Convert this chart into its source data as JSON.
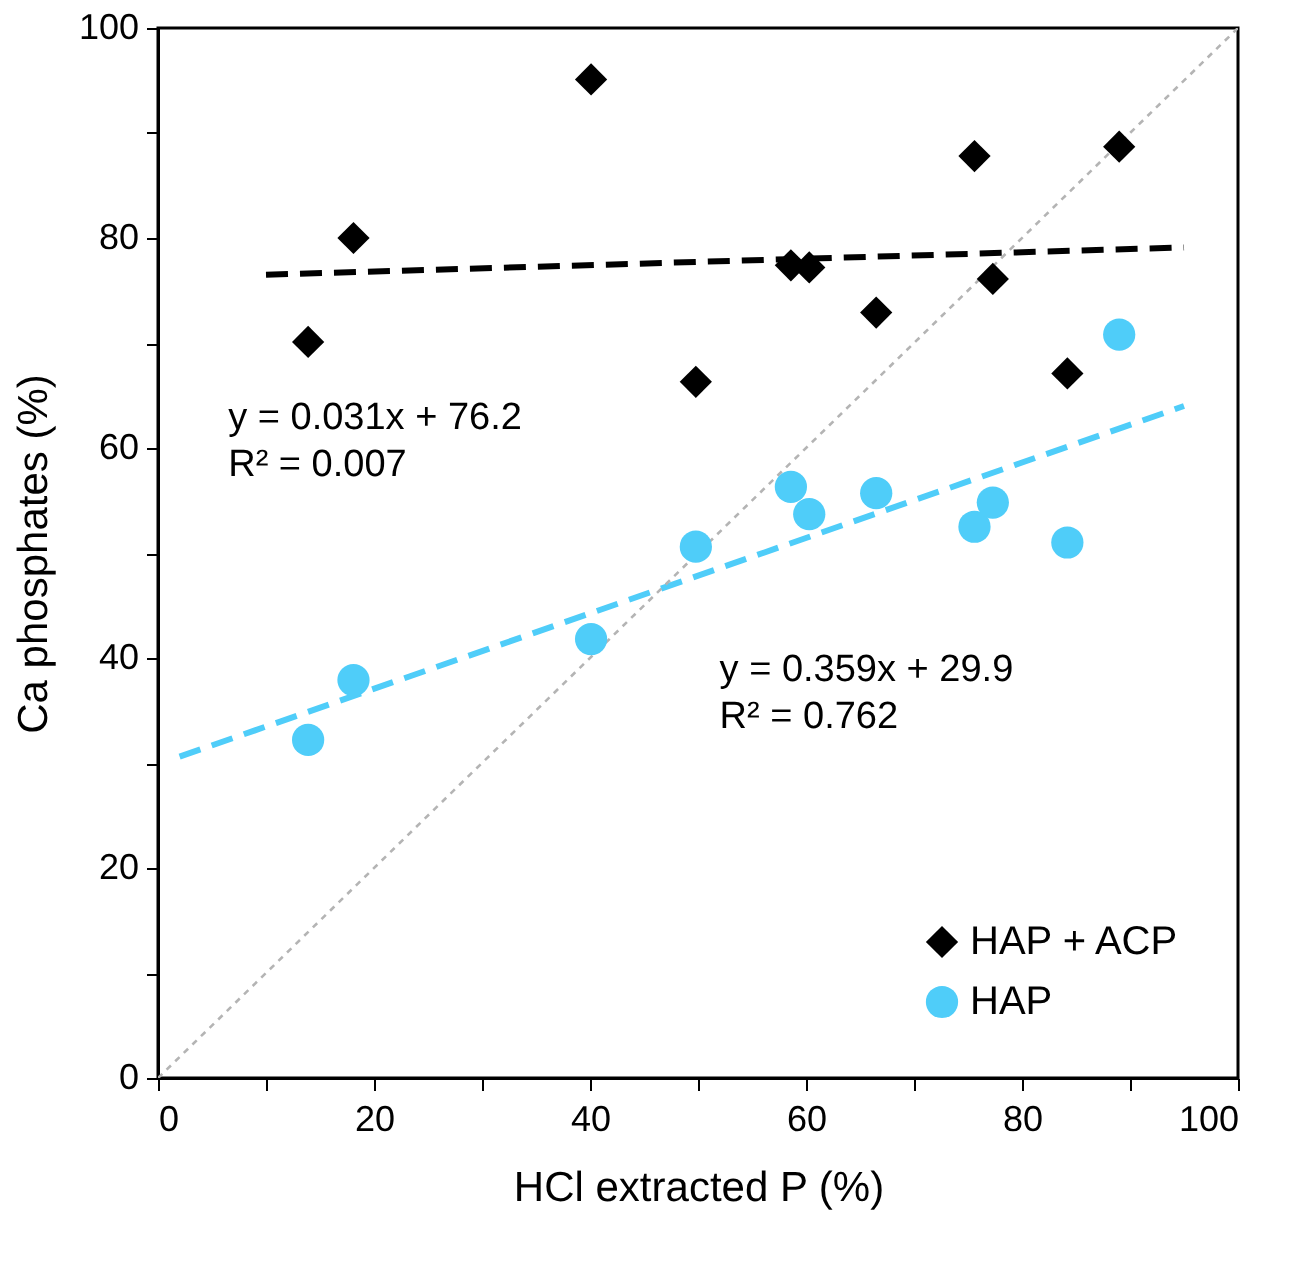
{
  "chart_data": {
    "type": "scatter",
    "xlabel": "HCl extracted P (%)",
    "ylabel": "Ca phosphates (%)",
    "x": [
      13.9,
      18.1,
      40.1,
      49.8,
      58.6,
      60.3,
      66.5,
      75.6,
      77.3,
      84.2,
      89.0
    ],
    "series": [
      {
        "name": "HAP + ACP",
        "color": "#000000",
        "marker": "diamond",
        "values": [
          70.1,
          80.0,
          95.1,
          66.3,
          77.4,
          77.2,
          72.9,
          87.8,
          76.1,
          67.1,
          88.7
        ]
      },
      {
        "name": "HAP",
        "color": "#4fcdf9",
        "marker": "circle",
        "values": [
          32.2,
          37.9,
          41.8,
          50.6,
          56.3,
          53.7,
          55.7,
          52.5,
          54.8,
          51.0,
          70.8
        ]
      },
      {
        "type": "line",
        "color": "#000000",
        "line_style": "dashed",
        "x": [
          10,
          95
        ],
        "values": [
          76.5,
          79.1
        ]
      },
      {
        "type": "line",
        "color": "#4fcdf9",
        "line_style": "dashed",
        "x": [
          2,
          95
        ],
        "values": [
          30.6,
          64.0
        ]
      },
      {
        "type": "line",
        "color": "#b4b4b4",
        "line_style": "dotted",
        "x": [
          0,
          100
        ],
        "values": [
          0,
          100
        ]
      }
    ],
    "xlim": [
      0,
      100
    ],
    "ylim": [
      0,
      100
    ],
    "xticks": [
      0,
      {
        "value": 10,
        "label": null
      },
      20,
      {
        "value": 30,
        "label": null
      },
      40,
      {
        "value": 50,
        "label": null
      },
      60,
      {
        "value": 70,
        "label": null
      },
      80,
      {
        "value": 90,
        "label": null
      },
      100
    ],
    "yticks": [
      0,
      {
        "value": 10,
        "label": null
      },
      20,
      {
        "value": 30,
        "label": null
      },
      40,
      {
        "value": 50,
        "label": null
      },
      60,
      {
        "value": 70,
        "label": null
      },
      80,
      {
        "value": 90,
        "label": null
      },
      100
    ],
    "annotations": [
      "y = 0.031x + 76.2",
      "R² = 0.007",
      "y = 0.359x + 29.9",
      "R² = 0.762"
    ],
    "legend": "bottom right",
    "grid": false
  }
}
